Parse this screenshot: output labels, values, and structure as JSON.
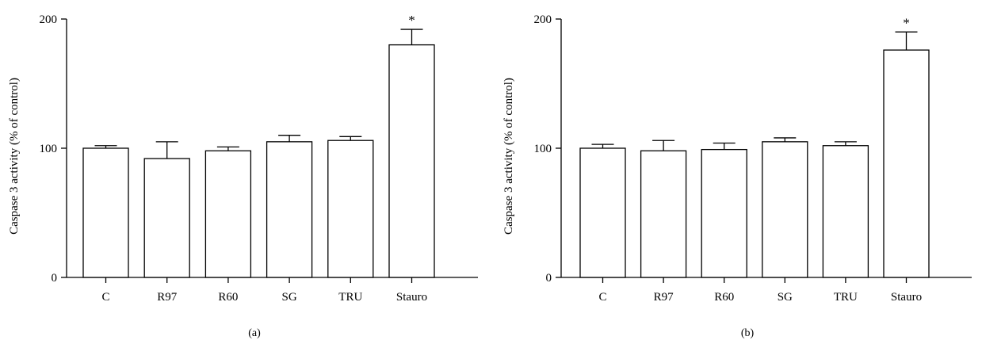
{
  "chart_data": [
    {
      "panel_label": "(a)",
      "type": "bar",
      "ylabel": "Caspase 3 activity (% of control)",
      "xlabel": "",
      "ylim": [
        0,
        200
      ],
      "yticks": [
        0,
        100,
        200
      ],
      "categories": [
        "C",
        "R97",
        "R60",
        "SG",
        "TRU",
        "Stauro"
      ],
      "values": [
        100,
        92,
        98,
        105,
        106,
        180
      ],
      "errors": [
        2,
        13,
        3,
        5,
        3,
        12
      ],
      "significance": [
        "",
        "",
        "",
        "",
        "",
        "*"
      ],
      "grid": false,
      "bar_color": "#ffffff"
    },
    {
      "panel_label": "(b)",
      "type": "bar",
      "ylabel": "Caspase 3 activity (% of control)",
      "xlabel": "",
      "ylim": [
        0,
        200
      ],
      "yticks": [
        0,
        100,
        200
      ],
      "categories": [
        "C",
        "R97",
        "R60",
        "SG",
        "TRU",
        "Stauro"
      ],
      "values": [
        100,
        98,
        99,
        105,
        102,
        176
      ],
      "errors": [
        3,
        8,
        5,
        3,
        3,
        14
      ],
      "significance": [
        "",
        "",
        "",
        "",
        "",
        "*"
      ],
      "grid": false,
      "bar_color": "#ffffff"
    }
  ]
}
